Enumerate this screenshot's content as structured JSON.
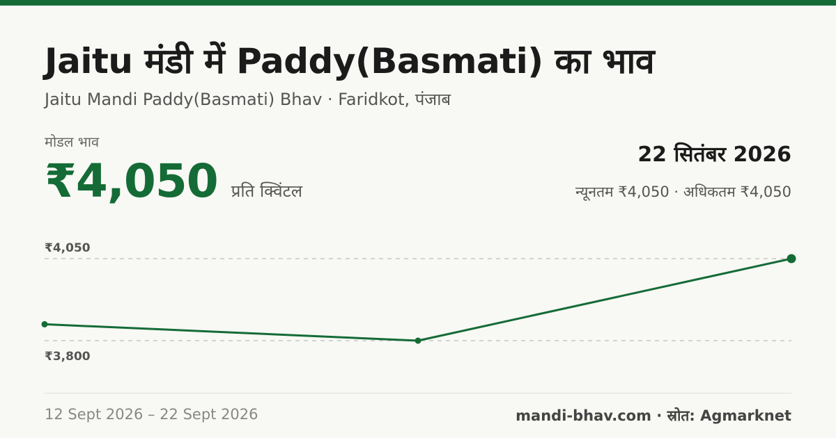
{
  "title": "Jaitu मंडी में Paddy(Basmati) का भाव",
  "subtitle": "Jaitu Mandi Paddy(Basmati) Bhav · Faridkot, पंजाब",
  "model_label": "मोडल भाव",
  "price": "₹4,050",
  "unit": "प्रति क्विंटल",
  "date": "22 सितंबर 2026",
  "minmax": "न्यूनतम ₹4,050 · अधिकतम ₹4,050",
  "footer": {
    "range": "12 Sept 2026 – 22 Sept 2026",
    "source": "mandi-bhav.com · स्रोत: Agmarknet"
  },
  "colors": {
    "accent": "#146b36",
    "gridline": "#bdbdbd"
  },
  "chart_data": {
    "type": "line",
    "x": [
      "12 Sept 2026",
      "",
      "22 Sept 2026"
    ],
    "values": [
      3850,
      3800,
      4050
    ],
    "tick_labels": [
      "₹4,050",
      "₹3,800"
    ],
    "ticks": [
      4050,
      3800
    ],
    "ylim": [
      3800,
      4050
    ],
    "grid": true,
    "title": "",
    "xlabel": "",
    "ylabel": ""
  }
}
